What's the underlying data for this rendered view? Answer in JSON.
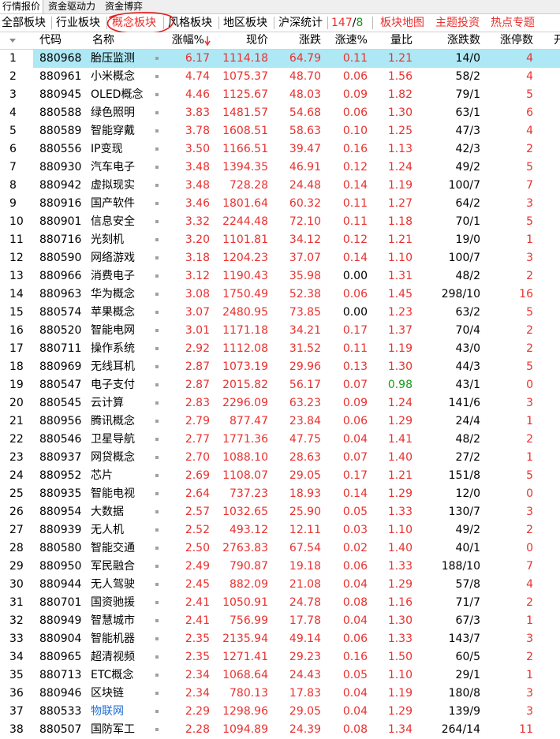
{
  "top_tabs": [
    "行情报价",
    "资金驱动力",
    "资金博弈"
  ],
  "sub_tabs": {
    "all": "全部板块",
    "industry": "行业板块",
    "concept": "概念板块",
    "style": "风格板块",
    "region": "地区板块",
    "hs": "沪深统计",
    "ratio_up": "147",
    "ratio_slash": "/",
    "ratio_down": "8",
    "map": "板块地图",
    "theme": "主题投资",
    "hot": "热点专题"
  },
  "columns": {
    "code": "代码",
    "name": "名称",
    "pct": "涨幅%",
    "price": "现价",
    "chg": "涨跌",
    "speed": "涨速%",
    "vratio": "量比",
    "updown": "涨跌数",
    "limit": "涨停数",
    "more": "开"
  },
  "rows": [
    {
      "rank": "1",
      "code": "880968",
      "name": "胎压监测",
      "pct": "6.17",
      "price": "1114.18",
      "chg": "64.79",
      "speed": "0.11",
      "vratio": "1.21",
      "updown": "14/0",
      "limit": "4"
    },
    {
      "rank": "2",
      "code": "880961",
      "name": "小米概念",
      "pct": "4.74",
      "price": "1075.37",
      "chg": "48.70",
      "speed": "0.06",
      "vratio": "1.56",
      "updown": "58/2",
      "limit": "4"
    },
    {
      "rank": "3",
      "code": "880945",
      "name": "OLED概念",
      "pct": "4.46",
      "price": "1125.67",
      "chg": "48.03",
      "speed": "0.09",
      "vratio": "1.82",
      "updown": "79/1",
      "limit": "5"
    },
    {
      "rank": "4",
      "code": "880588",
      "name": "绿色照明",
      "pct": "3.83",
      "price": "1481.57",
      "chg": "54.68",
      "speed": "0.06",
      "vratio": "1.30",
      "updown": "63/1",
      "limit": "6"
    },
    {
      "rank": "5",
      "code": "880589",
      "name": "智能穿戴",
      "pct": "3.78",
      "price": "1608.51",
      "chg": "58.63",
      "speed": "0.10",
      "vratio": "1.25",
      "updown": "47/3",
      "limit": "4"
    },
    {
      "rank": "6",
      "code": "880556",
      "name": "IP变现",
      "pct": "3.50",
      "price": "1166.51",
      "chg": "39.47",
      "speed": "0.16",
      "vratio": "1.13",
      "updown": "42/3",
      "limit": "2"
    },
    {
      "rank": "7",
      "code": "880930",
      "name": "汽车电子",
      "pct": "3.48",
      "price": "1394.35",
      "chg": "46.91",
      "speed": "0.12",
      "vratio": "1.24",
      "updown": "49/2",
      "limit": "5"
    },
    {
      "rank": "8",
      "code": "880942",
      "name": "虚拟现实",
      "pct": "3.48",
      "price": "728.28",
      "chg": "24.48",
      "speed": "0.14",
      "vratio": "1.19",
      "updown": "100/7",
      "limit": "7"
    },
    {
      "rank": "9",
      "code": "880916",
      "name": "国产软件",
      "pct": "3.46",
      "price": "1801.64",
      "chg": "60.32",
      "speed": "0.11",
      "vratio": "1.27",
      "updown": "64/2",
      "limit": "3"
    },
    {
      "rank": "10",
      "code": "880901",
      "name": "信息安全",
      "pct": "3.32",
      "price": "2244.48",
      "chg": "72.10",
      "speed": "0.11",
      "vratio": "1.18",
      "updown": "70/1",
      "limit": "5"
    },
    {
      "rank": "11",
      "code": "880716",
      "name": "光刻机",
      "pct": "3.20",
      "price": "1101.81",
      "chg": "34.12",
      "speed": "0.12",
      "vratio": "1.21",
      "updown": "19/0",
      "limit": "1"
    },
    {
      "rank": "12",
      "code": "880590",
      "name": "网络游戏",
      "pct": "3.18",
      "price": "1204.23",
      "chg": "37.07",
      "speed": "0.14",
      "vratio": "1.10",
      "updown": "100/7",
      "limit": "3"
    },
    {
      "rank": "13",
      "code": "880966",
      "name": "消费电子",
      "pct": "3.12",
      "price": "1190.43",
      "chg": "35.98",
      "speed": "0.00",
      "vratio": "1.31",
      "updown": "48/2",
      "limit": "2"
    },
    {
      "rank": "14",
      "code": "880963",
      "name": "华为概念",
      "pct": "3.08",
      "price": "1750.49",
      "chg": "52.38",
      "speed": "0.06",
      "vratio": "1.45",
      "updown": "298/10",
      "limit": "16"
    },
    {
      "rank": "15",
      "code": "880574",
      "name": "苹果概念",
      "pct": "3.07",
      "price": "2480.95",
      "chg": "73.85",
      "speed": "0.00",
      "vratio": "1.23",
      "updown": "63/2",
      "limit": "5"
    },
    {
      "rank": "16",
      "code": "880520",
      "name": "智能电网",
      "pct": "3.01",
      "price": "1171.18",
      "chg": "34.21",
      "speed": "0.17",
      "vratio": "1.37",
      "updown": "70/4",
      "limit": "2"
    },
    {
      "rank": "17",
      "code": "880711",
      "name": "操作系统",
      "pct": "2.92",
      "price": "1112.08",
      "chg": "31.52",
      "speed": "0.11",
      "vratio": "1.19",
      "updown": "43/0",
      "limit": "2"
    },
    {
      "rank": "18",
      "code": "880969",
      "name": "无线耳机",
      "pct": "2.87",
      "price": "1073.19",
      "chg": "29.96",
      "speed": "0.13",
      "vratio": "1.30",
      "updown": "44/3",
      "limit": "5"
    },
    {
      "rank": "19",
      "code": "880547",
      "name": "电子支付",
      "pct": "2.87",
      "price": "2015.82",
      "chg": "56.17",
      "speed": "0.07",
      "vratio": "0.98",
      "updown": "43/1",
      "limit": "0"
    },
    {
      "rank": "20",
      "code": "880545",
      "name": "云计算",
      "pct": "2.83",
      "price": "2296.09",
      "chg": "63.23",
      "speed": "0.09",
      "vratio": "1.24",
      "updown": "141/6",
      "limit": "3"
    },
    {
      "rank": "21",
      "code": "880956",
      "name": "腾讯概念",
      "pct": "2.79",
      "price": "877.47",
      "chg": "23.84",
      "speed": "0.06",
      "vratio": "1.29",
      "updown": "24/4",
      "limit": "1"
    },
    {
      "rank": "22",
      "code": "880546",
      "name": "卫星导航",
      "pct": "2.77",
      "price": "1771.36",
      "chg": "47.75",
      "speed": "0.04",
      "vratio": "1.41",
      "updown": "48/2",
      "limit": "2"
    },
    {
      "rank": "23",
      "code": "880937",
      "name": "网贷概念",
      "pct": "2.70",
      "price": "1088.10",
      "chg": "28.63",
      "speed": "0.07",
      "vratio": "1.40",
      "updown": "27/2",
      "limit": "1"
    },
    {
      "rank": "24",
      "code": "880952",
      "name": "芯片",
      "pct": "2.69",
      "price": "1108.07",
      "chg": "29.05",
      "speed": "0.17",
      "vratio": "1.21",
      "updown": "151/8",
      "limit": "5"
    },
    {
      "rank": "25",
      "code": "880935",
      "name": "智能电视",
      "pct": "2.64",
      "price": "737.23",
      "chg": "18.93",
      "speed": "0.14",
      "vratio": "1.29",
      "updown": "12/0",
      "limit": "0"
    },
    {
      "rank": "26",
      "code": "880954",
      "name": "大数据",
      "pct": "2.57",
      "price": "1032.65",
      "chg": "25.90",
      "speed": "0.05",
      "vratio": "1.33",
      "updown": "130/7",
      "limit": "3"
    },
    {
      "rank": "27",
      "code": "880939",
      "name": "无人机",
      "pct": "2.52",
      "price": "493.12",
      "chg": "12.11",
      "speed": "0.03",
      "vratio": "1.10",
      "updown": "49/2",
      "limit": "2"
    },
    {
      "rank": "28",
      "code": "880580",
      "name": "智能交通",
      "pct": "2.50",
      "price": "2763.83",
      "chg": "67.54",
      "speed": "0.02",
      "vratio": "1.40",
      "updown": "40/1",
      "limit": "0"
    },
    {
      "rank": "29",
      "code": "880950",
      "name": "军民融合",
      "pct": "2.49",
      "price": "790.87",
      "chg": "19.18",
      "speed": "0.06",
      "vratio": "1.33",
      "updown": "188/10",
      "limit": "7"
    },
    {
      "rank": "30",
      "code": "880944",
      "name": "无人驾驶",
      "pct": "2.45",
      "price": "882.09",
      "chg": "21.08",
      "speed": "0.04",
      "vratio": "1.29",
      "updown": "57/8",
      "limit": "4"
    },
    {
      "rank": "31",
      "code": "880701",
      "name": "国资驰援",
      "pct": "2.41",
      "price": "1050.91",
      "chg": "24.78",
      "speed": "0.08",
      "vratio": "1.16",
      "updown": "71/7",
      "limit": "2"
    },
    {
      "rank": "32",
      "code": "880949",
      "name": "智慧城市",
      "pct": "2.41",
      "price": "756.99",
      "chg": "17.78",
      "speed": "0.04",
      "vratio": "1.30",
      "updown": "67/3",
      "limit": "1"
    },
    {
      "rank": "33",
      "code": "880904",
      "name": "智能机器",
      "pct": "2.35",
      "price": "2135.94",
      "chg": "49.14",
      "speed": "0.06",
      "vratio": "1.33",
      "updown": "143/7",
      "limit": "3"
    },
    {
      "rank": "34",
      "code": "880965",
      "name": "超清视频",
      "pct": "2.35",
      "price": "1271.41",
      "chg": "29.23",
      "speed": "0.16",
      "vratio": "1.50",
      "updown": "60/5",
      "limit": "2"
    },
    {
      "rank": "35",
      "code": "880713",
      "name": "ETC概念",
      "pct": "2.34",
      "price": "1068.64",
      "chg": "24.43",
      "speed": "0.05",
      "vratio": "1.10",
      "updown": "29/1",
      "limit": "1"
    },
    {
      "rank": "36",
      "code": "880946",
      "name": "区块链",
      "pct": "2.34",
      "price": "780.13",
      "chg": "17.83",
      "speed": "0.04",
      "vratio": "1.19",
      "updown": "180/8",
      "limit": "3"
    },
    {
      "rank": "37",
      "code": "880533",
      "name": "物联网",
      "pct": "2.29",
      "price": "1298.96",
      "chg": "29.05",
      "speed": "0.04",
      "vratio": "1.29",
      "updown": "139/9",
      "limit": "3"
    },
    {
      "rank": "38",
      "code": "880507",
      "name": "国防军工",
      "pct": "2.28",
      "price": "1094.89",
      "chg": "24.39",
      "speed": "0.08",
      "vratio": "1.34",
      "updown": "264/14",
      "limit": "11"
    }
  ],
  "colors": {
    "up": "#e8312f",
    "down": "#1a9a1a",
    "neutral": "#000000",
    "selected_row": "#aee8f5",
    "annotation": "#e02020"
  }
}
